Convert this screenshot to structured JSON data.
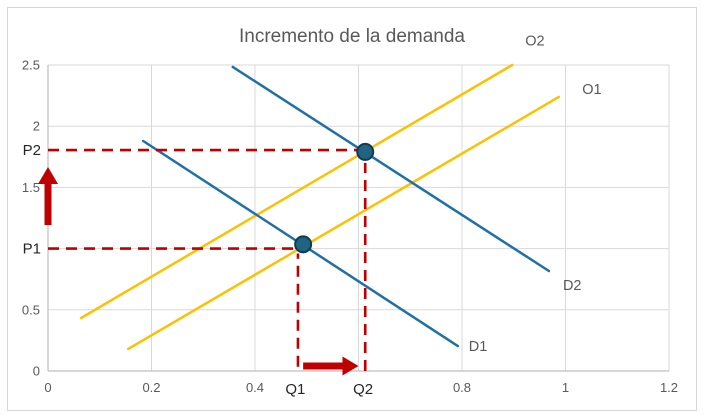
{
  "chart_data": {
    "type": "line",
    "title": "Incremento de la demanda",
    "xlabel": "",
    "ylabel": "",
    "grid": true,
    "legend_position": "inline-labels",
    "axes": {
      "x": {
        "min": 0,
        "max": 1.2,
        "ticks": [
          {
            "v": 0,
            "label": "0"
          },
          {
            "v": 0.2,
            "label": "0.2"
          },
          {
            "v": 0.4,
            "label": "0.4"
          },
          {
            "v": 0.8,
            "label": "0.8"
          },
          {
            "v": 1,
            "label": "1"
          },
          {
            "v": 1.2,
            "label": "1.2"
          }
        ],
        "gridlines": [
          0.2,
          0.4,
          0.6,
          0.8,
          1.0,
          1.2
        ]
      },
      "y": {
        "min": 0,
        "max": 2.5,
        "ticks": [
          {
            "v": 0,
            "label": "0"
          },
          {
            "v": 0.5,
            "label": "0.5"
          },
          {
            "v": 1.5,
            "label": "1.5"
          },
          {
            "v": 2,
            "label": "2"
          },
          {
            "v": 2.5,
            "label": "2.5"
          }
        ],
        "gridlines": [
          0.5,
          1.0,
          1.5,
          2.0,
          2.5
        ]
      }
    },
    "series": [
      {
        "name": "O2",
        "role": "supply-shifted",
        "color": "#FFC000",
        "points": [
          [
            0.064,
            0.433
          ],
          [
            0.897,
            2.5
          ]
        ],
        "label_pos": [
          0.941,
          2.7
        ]
      },
      {
        "name": "O1",
        "role": "supply",
        "color": "#FFC000",
        "points": [
          [
            0.155,
            0.18
          ],
          [
            0.987,
            2.239
          ]
        ],
        "label_pos": [
          1.051,
          2.304
        ]
      },
      {
        "name": "D1",
        "role": "demand",
        "color": "#2070A8",
        "points": [
          [
            0.184,
            1.879
          ],
          [
            0.792,
            0.204
          ]
        ],
        "label_pos": [
          0.831,
          0.204
        ]
      },
      {
        "name": "D2",
        "role": "demand-shifted",
        "color": "#2070A8",
        "points": [
          [
            0.357,
            2.484
          ],
          [
            0.968,
            0.817
          ]
        ],
        "label_pos": [
          1.013,
          0.703
        ]
      }
    ],
    "equilibrium_points": [
      {
        "name": "E1",
        "x": 0.493,
        "y": 1.035
      },
      {
        "name": "E2",
        "x": 0.613,
        "y": 1.79
      }
    ],
    "readings": {
      "P1": 1.0,
      "P2": 1.8,
      "Q1": 0.48,
      "Q2": 0.61
    },
    "guides": [
      {
        "name": "p2-price-line",
        "type": "h",
        "v": 1.805,
        "from": 0,
        "to": 0.613
      },
      {
        "name": "p1-price-line",
        "type": "h",
        "v": 1.0,
        "from": 0,
        "to": 0.483
      },
      {
        "name": "q1-quantity-line",
        "type": "v",
        "v": 0.483,
        "from": 0.035,
        "to": 0.96
      },
      {
        "name": "q2-quantity-line",
        "type": "v",
        "v": 0.613,
        "from": 0.0,
        "to": 1.7
      }
    ],
    "point_labels": [
      {
        "text": "P2",
        "axis": "y",
        "v": 1.805
      },
      {
        "text": "P1",
        "axis": "y",
        "v": 1.0
      },
      {
        "text": "Q1",
        "axis": "x",
        "v": 0.478
      },
      {
        "text": "Q2",
        "axis": "x",
        "v": 0.609
      }
    ],
    "arrows": [
      {
        "name": "price-increase-arrow",
        "dir": "up",
        "x": 0.0,
        "from_y": 1.193,
        "to_y": 1.667
      },
      {
        "name": "quantity-increase-arrow",
        "dir": "right",
        "y": 0.041,
        "from_x": 0.493,
        "to_x": 0.6
      }
    ],
    "colors": {
      "demand": "#2070A8",
      "supply": "#FFC000",
      "guide": "#C00000",
      "marker_fill": "#1F6582",
      "marker_stroke": "#123A52",
      "grid": "#D9D9D9",
      "axis": "#BFBFBF",
      "tick_text": "#595959",
      "series_label_text": "#595959",
      "annotation_text": "#262626",
      "title_text": "#595959",
      "frame": "#D6D6D6"
    }
  }
}
